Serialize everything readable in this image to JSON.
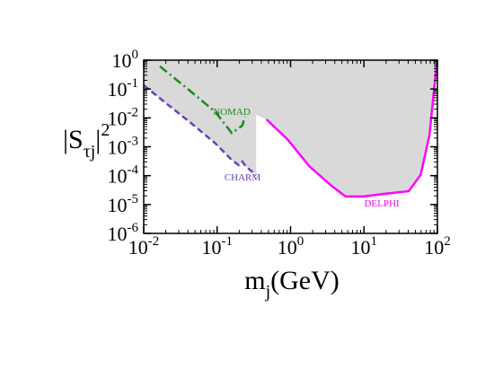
{
  "chart_data": {
    "type": "line",
    "xlabel": {
      "main": "m",
      "sub": "j",
      "rest": "(GeV)"
    },
    "ylabel": {
      "main": "|S",
      "sub": "τj",
      "rest": "|",
      "sup": "2"
    },
    "xscale": "log",
    "yscale": "log",
    "xlim": [
      0.01,
      100
    ],
    "ylim": [
      1e-06,
      1
    ],
    "xticks": [
      {
        "value": 0.01,
        "label": "10",
        "exponent": "-2"
      },
      {
        "value": 0.1,
        "label": "10",
        "exponent": "-1"
      },
      {
        "value": 1,
        "label": "10",
        "exponent": "0"
      },
      {
        "value": 10,
        "label": "10",
        "exponent": "1"
      },
      {
        "value": 100,
        "label": "10",
        "exponent": "2"
      }
    ],
    "yticks": [
      {
        "value": 1e-06,
        "label": "10",
        "exponent": "-6"
      },
      {
        "value": 1e-05,
        "label": "10",
        "exponent": "-5"
      },
      {
        "value": 0.0001,
        "label": "10",
        "exponent": "-4"
      },
      {
        "value": 0.001,
        "label": "10",
        "exponent": "-3"
      },
      {
        "value": 0.01,
        "label": "10",
        "exponent": "-2"
      },
      {
        "value": 0.1,
        "label": "10",
        "exponent": "-1"
      },
      {
        "value": 1,
        "label": "10",
        "exponent": "0"
      }
    ],
    "excluded_region_color": "#d9d9d9",
    "series": [
      {
        "name": "NOMAD",
        "color": "#1a8a1a",
        "style": "dashdot",
        "x": [
          0.0166,
          0.041,
          0.095,
          0.158,
          0.22,
          0.24
        ],
        "values": [
          0.61,
          0.094,
          0.016,
          0.003,
          0.0054,
          0.011
        ]
      },
      {
        "name": "CHARM",
        "color": "#6a3fbf",
        "style": "dashed",
        "x": [
          0.01,
          0.0202,
          0.041,
          0.095,
          0.158,
          0.197,
          0.22,
          0.25,
          0.34
        ],
        "values": [
          0.135,
          0.032,
          0.0077,
          0.0013,
          0.00035,
          0.00023,
          0.00031,
          0.0002,
          0.000105
        ]
      },
      {
        "name": "DELPHI",
        "color": "#ff00ff",
        "style": "solid",
        "x": [
          0.47,
          0.91,
          1.8,
          3.7,
          5.6,
          9.9,
          17.5,
          40.6,
          59,
          78,
          91,
          100
        ],
        "values": [
          0.0089,
          0.0018,
          0.00021,
          4.2e-05,
          1.9e-05,
          1.9e-05,
          2.3e-05,
          2.9e-05,
          0.000105,
          0.0026,
          0.135,
          1
        ]
      }
    ]
  }
}
